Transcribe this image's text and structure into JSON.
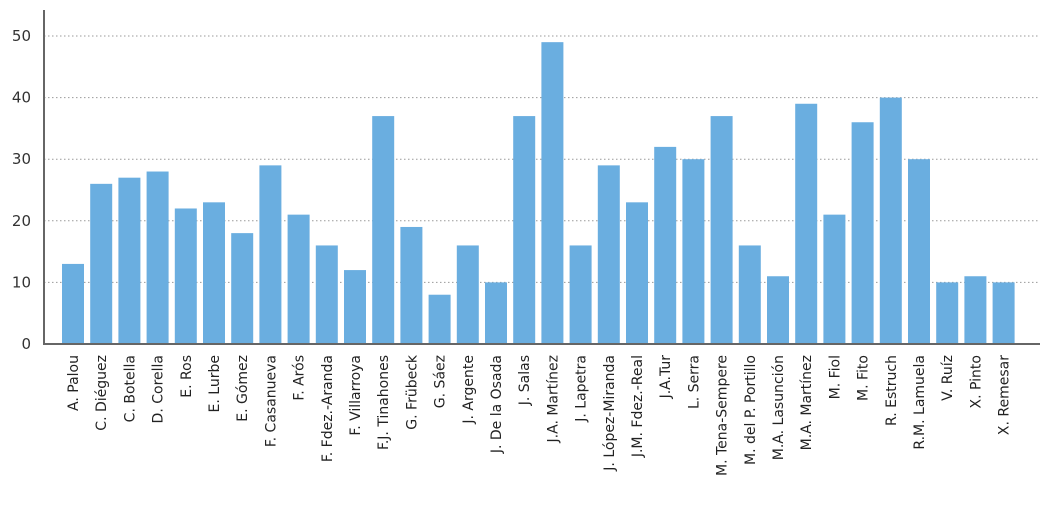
{
  "chart_data": {
    "type": "bar",
    "categories": [
      "A. Palou",
      "C. Diéguez",
      "C. Botella",
      "D. Corella",
      "E. Ros",
      "E. Lurbe",
      "E. Gómez",
      "F. Casanueva",
      "F. Arós",
      "F. Fdez.-Aranda",
      "F. Villarroya",
      "F.J. Tinahones",
      "G. Frübeck",
      "G. Sáez",
      "J. Argente",
      "J. De la Osada",
      "J. Salas",
      "J.A. Martínez",
      "J. Lapetra",
      "J. López-Miranda",
      "J.M. Fdez.-Real",
      "J.A.Tur",
      "L. Serra",
      "M. Tena-Sempere",
      "M. del P. Portillo",
      "M.A. Lasunción",
      "M.A. Martínez",
      "M. Fiol",
      "M. Fito",
      "R. Estruch",
      "R.M. Lamuela",
      "V. Ruíz",
      "X. Pinto",
      "X. Remesar"
    ],
    "values": [
      13,
      26,
      27,
      28,
      22,
      23,
      18,
      29,
      21,
      16,
      12,
      37,
      19,
      8,
      16,
      10,
      37,
      49,
      16,
      29,
      23,
      32,
      30,
      37,
      16,
      11,
      39,
      21,
      36,
      40,
      30,
      10,
      11,
      10
    ],
    "title": "",
    "xlabel": "",
    "ylabel": "",
    "ylim": [
      0,
      50
    ],
    "yticks": [
      "0",
      "10",
      "20",
      "30",
      "40",
      "50"
    ],
    "grid": true,
    "colors": {
      "bar": "#6aaee0",
      "axis": "#666666",
      "grid": "#9a9a9a"
    }
  }
}
